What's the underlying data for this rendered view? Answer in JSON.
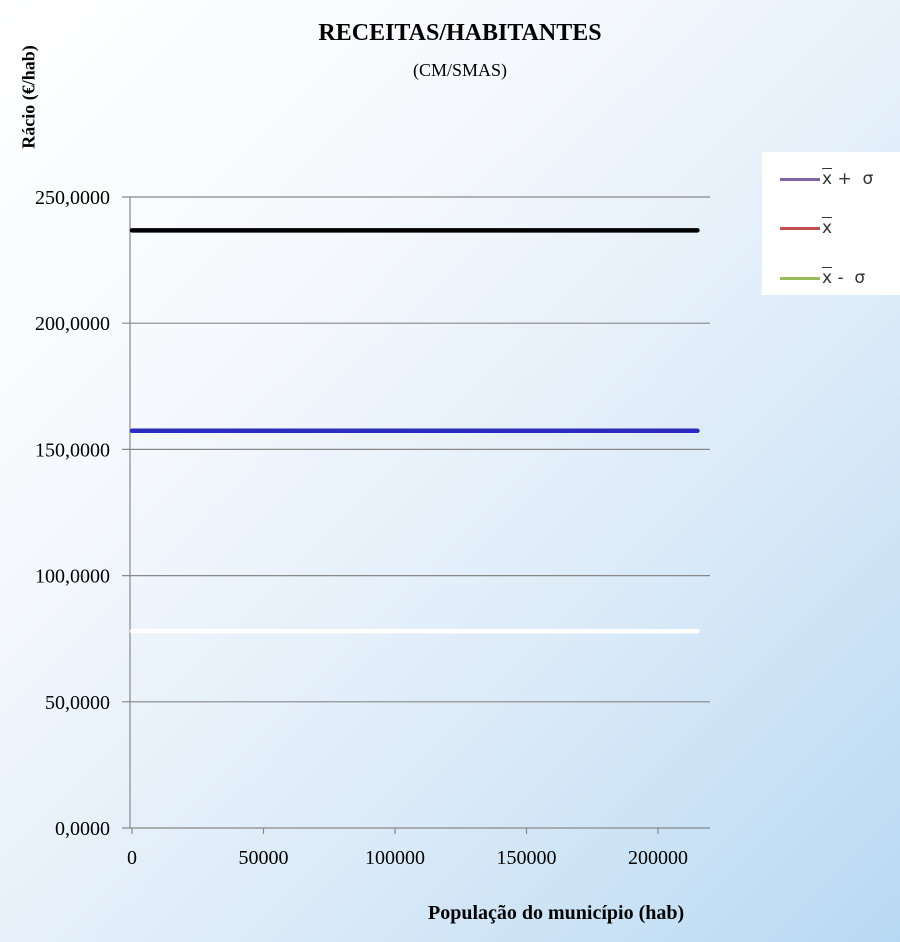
{
  "chart_data": {
    "type": "line",
    "title": "RECEITAS/HABITANTES",
    "subtitle": "(CM/SMAS)",
    "xlabel": "População do município (hab)",
    "ylabel": "Rácio (€/hab)",
    "xlim": [
      0,
      220000
    ],
    "ylim": [
      0,
      250
    ],
    "xticks": [
      0,
      50000,
      100000,
      150000,
      200000
    ],
    "xtick_labels": [
      "0",
      "50000",
      "100000",
      "150000",
      "200000"
    ],
    "yticks": [
      0,
      50,
      100,
      150,
      200,
      250
    ],
    "ytick_labels": [
      "0,0000",
      "50,0000",
      "100,0000",
      "150,0000",
      "200,0000",
      "250,0000"
    ],
    "grid": "horizontal",
    "legend_position": "right",
    "series": [
      {
        "name": "x̄ + σ",
        "color": "#000000",
        "x": [
          0,
          215000
        ],
        "values": [
          236.8,
          236.8
        ]
      },
      {
        "name": "x̄",
        "color": "#2b2bc0",
        "x": [
          0,
          215000
        ],
        "values": [
          157.4,
          157.4
        ]
      },
      {
        "name": "x̄ - σ",
        "color": "#ffffff",
        "x": [
          0,
          215000
        ],
        "values": [
          78.0,
          78.0
        ]
      }
    ],
    "legend": [
      {
        "symbol": "x",
        "suffix": " +  σ",
        "color": "#7f62a8"
      },
      {
        "symbol": "x",
        "suffix": "",
        "color": "#c0504d"
      },
      {
        "symbol": "x",
        "suffix": " -  σ",
        "color": "#9bbb59"
      }
    ]
  }
}
